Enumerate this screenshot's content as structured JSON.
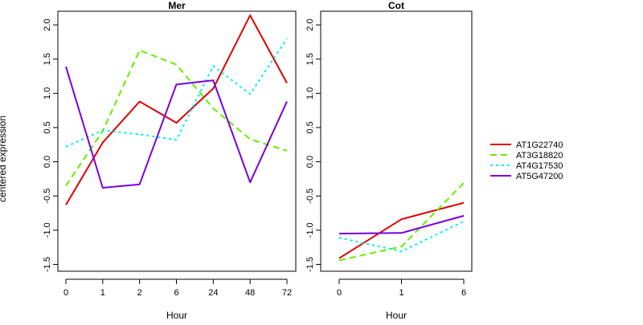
{
  "figure": {
    "ylabel": "centered expression",
    "legend_position": "right"
  },
  "chart_data": [
    {
      "type": "line",
      "title": "Mer",
      "xlabel": "Hour",
      "ylabel": "centered expression",
      "categories": [
        "0",
        "1",
        "2",
        "6",
        "24",
        "48",
        "72"
      ],
      "ylim": [
        -1.6,
        2.2
      ],
      "yticks": [
        -1.5,
        -1.0,
        -0.5,
        0.0,
        0.5,
        1.0,
        1.5,
        2.0
      ],
      "ytick_labels": [
        "-1.5",
        "-1.0",
        "-0.5",
        "0.0",
        "0.5",
        "1.0",
        "1.5",
        "2.0"
      ],
      "grid": false,
      "series": [
        {
          "name": "AT1G22740",
          "values": [
            -0.63,
            0.28,
            0.88,
            0.57,
            1.07,
            2.14,
            1.15
          ]
        },
        {
          "name": "AT3G18820",
          "values": [
            -0.35,
            0.45,
            1.63,
            1.42,
            0.78,
            0.33,
            0.16
          ]
        },
        {
          "name": "AT4G17530",
          "values": [
            0.22,
            0.46,
            0.4,
            0.32,
            1.4,
            0.99,
            1.8
          ]
        },
        {
          "name": "AT5G47200",
          "values": [
            1.39,
            -0.38,
            -0.33,
            1.13,
            1.19,
            -0.3,
            0.88
          ]
        }
      ]
    },
    {
      "type": "line",
      "title": "Cot",
      "xlabel": "Hour",
      "categories": [
        "0",
        "1",
        "6"
      ],
      "ylim": [
        -1.6,
        2.2
      ],
      "yticks": [
        -1.5,
        -1.0,
        -0.5,
        0.0,
        0.5,
        1.0,
        1.5,
        2.0
      ],
      "ytick_labels": [
        "-1.5",
        "-1.0",
        "-0.5",
        "0.0",
        "0.5",
        "1.0",
        "1.5",
        "2.0"
      ],
      "grid": false,
      "series": [
        {
          "name": "AT1G22740",
          "values": [
            -1.41,
            -0.84,
            -0.6
          ]
        },
        {
          "name": "AT3G18820",
          "values": [
            -1.44,
            -1.24,
            -0.31
          ]
        },
        {
          "name": "AT4G17530",
          "values": [
            -1.11,
            -1.31,
            -0.87
          ]
        },
        {
          "name": "AT5G47200",
          "values": [
            -1.05,
            -1.04,
            -0.79
          ]
        }
      ]
    }
  ],
  "legend": {
    "entries": [
      {
        "name": "AT1G22740",
        "color": "#dd0000",
        "style": "solid"
      },
      {
        "name": "AT3G18820",
        "color": "#66ee00",
        "style": "dashed"
      },
      {
        "name": "AT4G17530",
        "color": "#00eeee",
        "style": "dotted"
      },
      {
        "name": "AT5G47200",
        "color": "#7700dd",
        "style": "solid"
      }
    ]
  }
}
